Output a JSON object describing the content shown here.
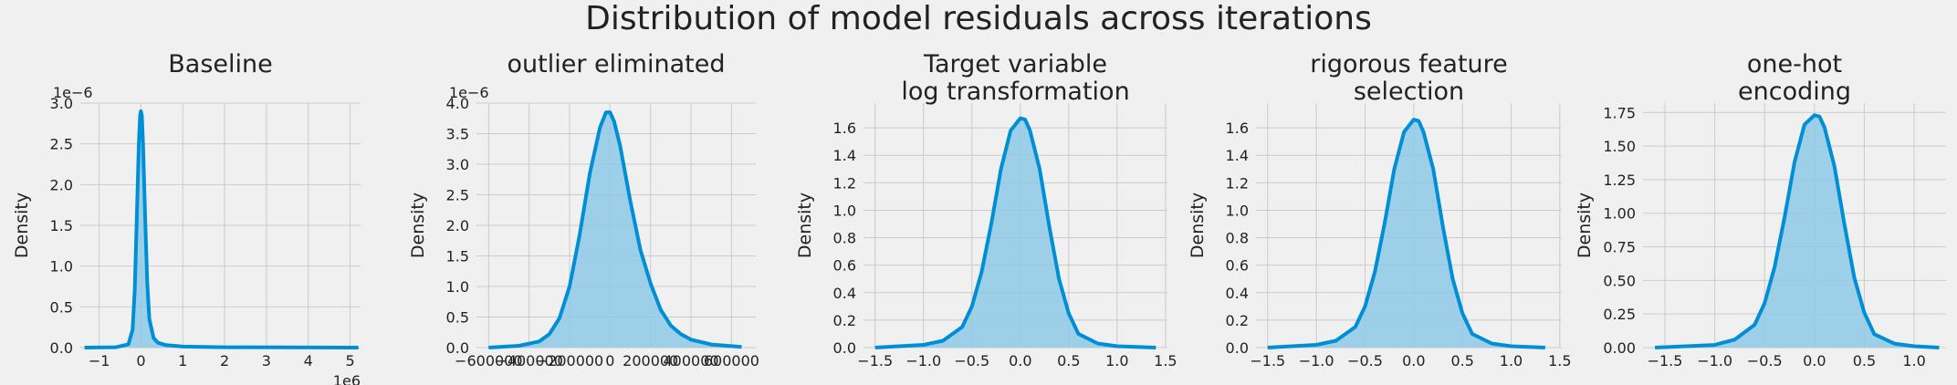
{
  "suptitle": "Distribution of model residuals across iterations",
  "colors": {
    "line": "#008fd5",
    "fill": "#8fc9e6",
    "grid": "#cbcbcb",
    "background": "#f0f0f0"
  },
  "chart_data": [
    {
      "type": "area",
      "title_lines": [
        "Baseline"
      ],
      "ylabel": "Density",
      "x_offset_label": "1e6",
      "y_offset_label": "1e−6",
      "xlim": [
        -1.45,
        5.25
      ],
      "ylim": [
        0,
        3.0
      ],
      "xticks": [
        -1,
        0,
        1,
        2,
        3,
        4,
        5
      ],
      "xtick_labels": [
        "−1",
        "0",
        "1",
        "2",
        "3",
        "4",
        "5"
      ],
      "yticks": [
        0,
        0.5,
        1.0,
        1.5,
        2.0,
        2.5,
        3.0
      ],
      "ytick_labels": [
        "0.0",
        "0.5",
        "1.0",
        "1.5",
        "2.0",
        "2.5",
        "3.0"
      ],
      "kde": {
        "x": [
          -1.35,
          -0.6,
          -0.3,
          -0.2,
          -0.15,
          -0.1,
          -0.05,
          -0.02,
          0,
          0.02,
          0.05,
          0.1,
          0.15,
          0.2,
          0.3,
          0.4,
          0.6,
          1.0,
          2.0,
          3.5,
          5.2
        ],
        "y": [
          0,
          0.005,
          0.04,
          0.22,
          0.7,
          1.6,
          2.5,
          2.85,
          2.9,
          2.85,
          2.5,
          1.6,
          0.8,
          0.35,
          0.12,
          0.06,
          0.03,
          0.012,
          0.005,
          0.003,
          0
        ]
      },
      "grid": true
    },
    {
      "type": "area",
      "title_lines": [
        "outlier eliminated"
      ],
      "ylabel": "Density",
      "x_offset_label": "",
      "y_offset_label": "1e−6",
      "xlim": [
        -660000,
        720000
      ],
      "ylim": [
        0,
        4.0
      ],
      "xticks": [
        -600000,
        -400000,
        -200000,
        0,
        200000,
        400000,
        600000
      ],
      "xtick_labels": [
        "−600000",
        "−400000",
        "−200000",
        "0",
        "200000",
        "400000",
        "600000"
      ],
      "yticks": [
        0,
        0.5,
        1.0,
        1.5,
        2.0,
        2.5,
        3.0,
        3.5,
        4.0
      ],
      "ytick_labels": [
        "0.0",
        "0.5",
        "1.0",
        "1.5",
        "2.0",
        "2.5",
        "3.0",
        "3.5",
        "4.0"
      ],
      "kde": {
        "x": [
          -600000,
          -450000,
          -350000,
          -300000,
          -250000,
          -200000,
          -150000,
          -100000,
          -50000,
          -20000,
          0,
          20000,
          50000,
          100000,
          150000,
          200000,
          250000,
          300000,
          350000,
          400000,
          500000,
          650000
        ],
        "y": [
          0,
          0.03,
          0.1,
          0.22,
          0.48,
          1.0,
          1.85,
          2.85,
          3.6,
          3.85,
          3.85,
          3.7,
          3.3,
          2.4,
          1.6,
          1.05,
          0.62,
          0.36,
          0.22,
          0.13,
          0.05,
          0.01
        ]
      },
      "grid": true
    },
    {
      "type": "area",
      "title_lines": [
        "Target variable",
        "log transformation"
      ],
      "ylabel": "Density",
      "x_offset_label": "",
      "y_offset_label": "",
      "xlim": [
        -1.62,
        1.52
      ],
      "ylim": [
        0,
        1.78
      ],
      "xticks": [
        -1.5,
        -1.0,
        -0.5,
        0.0,
        0.5,
        1.0,
        1.5
      ],
      "xtick_labels": [
        "−1.5",
        "−1.0",
        "−0.5",
        "0.0",
        "0.5",
        "1.0",
        "1.5"
      ],
      "yticks": [
        0,
        0.2,
        0.4,
        0.6,
        0.8,
        1.0,
        1.2,
        1.4,
        1.6
      ],
      "ytick_labels": [
        "0.0",
        "0.2",
        "0.4",
        "0.6",
        "0.8",
        "1.0",
        "1.2",
        "1.4",
        "1.6"
      ],
      "kde": {
        "x": [
          -1.5,
          -1.0,
          -0.8,
          -0.6,
          -0.5,
          -0.4,
          -0.3,
          -0.2,
          -0.1,
          0.0,
          0.05,
          0.1,
          0.2,
          0.3,
          0.4,
          0.5,
          0.6,
          0.8,
          1.0,
          1.4
        ],
        "y": [
          0.0,
          0.02,
          0.05,
          0.15,
          0.3,
          0.55,
          0.9,
          1.3,
          1.58,
          1.67,
          1.66,
          1.58,
          1.3,
          0.88,
          0.5,
          0.25,
          0.1,
          0.03,
          0.01,
          0.0
        ]
      },
      "grid": true
    },
    {
      "type": "area",
      "title_lines": [
        "rigorous feature",
        "selection"
      ],
      "ylabel": "Density",
      "x_offset_label": "",
      "y_offset_label": "",
      "xlim": [
        -1.62,
        1.52
      ],
      "ylim": [
        0,
        1.78
      ],
      "xticks": [
        -1.5,
        -1.0,
        -0.5,
        0.0,
        0.5,
        1.0,
        1.5
      ],
      "xtick_labels": [
        "−1.5",
        "−1.0",
        "−0.5",
        "0.0",
        "0.5",
        "1.0",
        "1.5"
      ],
      "yticks": [
        0,
        0.2,
        0.4,
        0.6,
        0.8,
        1.0,
        1.2,
        1.4,
        1.6
      ],
      "ytick_labels": [
        "0.0",
        "0.2",
        "0.4",
        "0.6",
        "0.8",
        "1.0",
        "1.2",
        "1.4",
        "1.6"
      ],
      "kde": {
        "x": [
          -1.5,
          -1.0,
          -0.8,
          -0.6,
          -0.5,
          -0.4,
          -0.3,
          -0.2,
          -0.1,
          0.0,
          0.05,
          0.1,
          0.2,
          0.3,
          0.4,
          0.5,
          0.6,
          0.8,
          1.0,
          1.35
        ],
        "y": [
          0.0,
          0.02,
          0.05,
          0.15,
          0.3,
          0.55,
          0.9,
          1.3,
          1.57,
          1.66,
          1.65,
          1.57,
          1.3,
          0.88,
          0.5,
          0.25,
          0.1,
          0.03,
          0.01,
          0.0
        ]
      },
      "grid": true
    },
    {
      "type": "area",
      "title_lines": [
        "one-hot",
        "encoding"
      ],
      "ylabel": "Density",
      "x_offset_label": "",
      "y_offset_label": "",
      "xlim": [
        -1.72,
        1.32
      ],
      "ylim": [
        0,
        1.82
      ],
      "xticks": [
        -1.5,
        -1.0,
        -0.5,
        0.0,
        0.5,
        1.0
      ],
      "xtick_labels": [
        "−1.5",
        "−1.0",
        "−0.5",
        "0.0",
        "0.5",
        "1.0"
      ],
      "yticks": [
        0,
        0.25,
        0.5,
        0.75,
        1.0,
        1.25,
        1.5,
        1.75
      ],
      "ytick_labels": [
        "0.00",
        "0.25",
        "0.50",
        "0.75",
        "1.00",
        "1.25",
        "1.50",
        "1.75"
      ],
      "kde": {
        "x": [
          -1.6,
          -1.0,
          -0.8,
          -0.6,
          -0.5,
          -0.4,
          -0.3,
          -0.2,
          -0.1,
          0.0,
          0.05,
          0.1,
          0.2,
          0.3,
          0.4,
          0.5,
          0.6,
          0.8,
          1.0,
          1.25
        ],
        "y": [
          0.0,
          0.02,
          0.06,
          0.17,
          0.33,
          0.6,
          0.97,
          1.38,
          1.66,
          1.73,
          1.72,
          1.64,
          1.35,
          0.92,
          0.52,
          0.26,
          0.1,
          0.03,
          0.01,
          0.0
        ]
      },
      "grid": true
    }
  ]
}
